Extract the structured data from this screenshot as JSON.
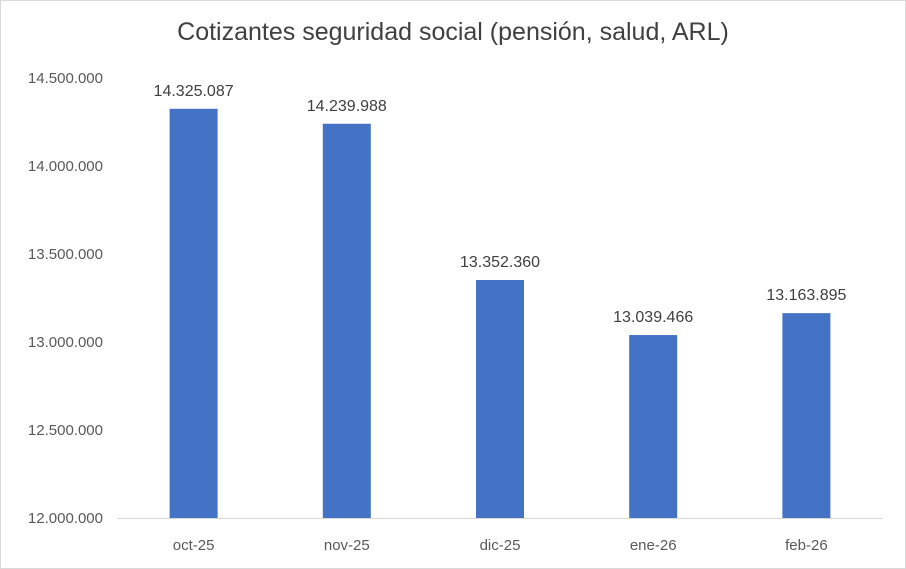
{
  "chart_data": {
    "type": "bar",
    "title": "Cotizantes seguridad social (pensión, salud, ARL)",
    "categories": [
      "oct-25",
      "nov-25",
      "dic-25",
      "ene-26",
      "feb-26"
    ],
    "values": [
      14325087,
      14239988,
      13352360,
      13039466,
      13163895
    ],
    "data_labels": [
      "14.325.087",
      "14.239.988",
      "13.352.360",
      "13.039.466",
      "13.163.895"
    ],
    "ylim": [
      12000000,
      14500000
    ],
    "yticks": [
      12000000,
      12500000,
      13000000,
      13500000,
      14000000,
      14500000
    ],
    "ytick_labels": [
      "12.000.000",
      "12.500.000",
      "13.000.000",
      "13.500.000",
      "14.000.000",
      "14.500.000"
    ],
    "xlabel": "",
    "ylabel": "",
    "grid": false,
    "legend": "none",
    "bar_color": "#4472C4",
    "axis_color": "#D9D9D9"
  }
}
